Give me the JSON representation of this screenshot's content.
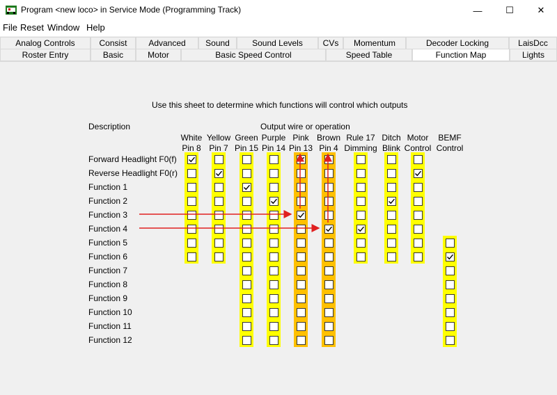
{
  "window": {
    "title": "Program <new loco> in Service Mode (Programming Track)",
    "minimize_glyph": "—",
    "maximize_glyph": "☐",
    "close_glyph": "✕"
  },
  "menu": [
    "File",
    "Reset",
    "Window",
    "Help"
  ],
  "tabs_row1": [
    "Analog Controls",
    "Consist",
    "Advanced",
    "Sound",
    "Sound Levels",
    "CVs",
    "Momentum",
    "Decoder Locking",
    "LaisDcc"
  ],
  "tabs_row2": [
    "Roster Entry",
    "Basic",
    "Motor",
    "Basic Speed Control",
    "Speed Table",
    "Function Map",
    "Lights"
  ],
  "active_tab": "Function Map",
  "instructions": "Use this sheet to determine which functions will control which outputs",
  "description_header": "Description",
  "output_header": "Output wire or operation",
  "columns": [
    {
      "line1": "White",
      "line2": "Pin 8"
    },
    {
      "line1": "Yellow",
      "line2": "Pin 7"
    },
    {
      "line1": "Green",
      "line2": "Pin 15"
    },
    {
      "line1": "Purple",
      "line2": "Pin 14"
    },
    {
      "line1": "Pink",
      "line2": "Pin 13"
    },
    {
      "line1": "Brown",
      "line2": "Pin 4"
    },
    {
      "line1": "Rule 17",
      "line2": "Dimming"
    },
    {
      "line1": "Ditch",
      "line2": "Blink"
    },
    {
      "line1": "Motor",
      "line2": "Control"
    },
    {
      "line1": "BEMF",
      "line2": "Control"
    }
  ],
  "rows": [
    "Forward Headlight F0(f)",
    "Reverse Headlight F0(r)",
    "Function 1",
    "Function 2",
    "Function 3",
    "Function 4",
    "Function 5",
    "Function 6",
    "Function 7",
    "Function 8",
    "Function 9",
    "Function 10",
    "Function 11",
    "Function 12"
  ],
  "grid": [
    [
      1,
      0,
      0,
      0,
      1,
      0,
      0,
      0,
      0,
      null
    ],
    [
      0,
      1,
      0,
      0,
      0,
      0,
      0,
      0,
      1,
      null
    ],
    [
      0,
      0,
      1,
      0,
      0,
      0,
      0,
      0,
      0,
      null
    ],
    [
      0,
      0,
      0,
      1,
      0,
      0,
      0,
      1,
      0,
      null
    ],
    [
      0,
      0,
      0,
      0,
      1,
      0,
      0,
      0,
      0,
      null
    ],
    [
      0,
      0,
      0,
      0,
      0,
      1,
      1,
      0,
      0,
      null
    ],
    [
      0,
      0,
      0,
      0,
      0,
      0,
      0,
      0,
      0,
      0
    ],
    [
      0,
      0,
      0,
      0,
      0,
      0,
      0,
      0,
      0,
      1
    ],
    [
      null,
      null,
      0,
      0,
      0,
      0,
      null,
      null,
      null,
      0
    ],
    [
      null,
      null,
      0,
      0,
      0,
      0,
      null,
      null,
      null,
      0
    ],
    [
      null,
      null,
      0,
      0,
      0,
      0,
      null,
      null,
      null,
      0
    ],
    [
      null,
      null,
      0,
      0,
      0,
      0,
      null,
      null,
      null,
      0
    ],
    [
      null,
      null,
      0,
      0,
      0,
      0,
      null,
      null,
      null,
      0
    ],
    [
      null,
      null,
      0,
      0,
      0,
      0,
      null,
      null,
      null,
      0
    ]
  ],
  "highlight_columns": [
    4,
    5
  ],
  "colors": {
    "strip": "#ffff00",
    "strip_highlight": "#ffc000",
    "arrow": "#e02020"
  }
}
